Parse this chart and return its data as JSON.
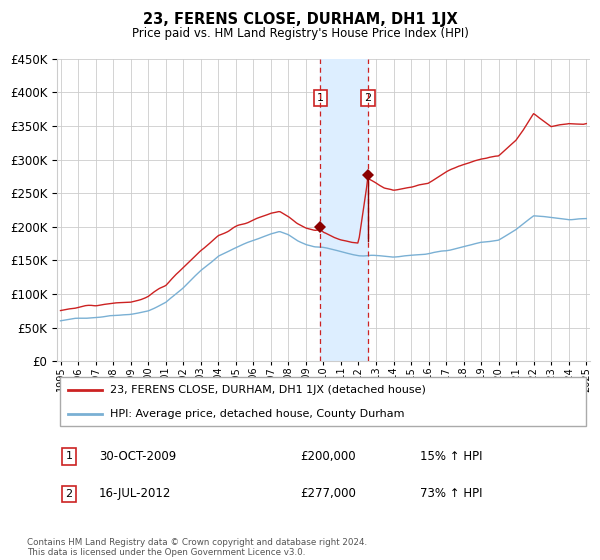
{
  "title": "23, FERENS CLOSE, DURHAM, DH1 1JX",
  "subtitle": "Price paid vs. HM Land Registry's House Price Index (HPI)",
  "legend_line1": "23, FERENS CLOSE, DURHAM, DH1 1JX (detached house)",
  "legend_line2": "HPI: Average price, detached house, County Durham",
  "transaction1_label": "1",
  "transaction1_date": "30-OCT-2009",
  "transaction1_price": "£200,000",
  "transaction1_hpi": "15% ↑ HPI",
  "transaction2_label": "2",
  "transaction2_date": "16-JUL-2012",
  "transaction2_price": "£277,000",
  "transaction2_hpi": "73% ↑ HPI",
  "footer": "Contains HM Land Registry data © Crown copyright and database right 2024.\nThis data is licensed under the Open Government Licence v3.0.",
  "ylim": [
    0,
    450000
  ],
  "yticks": [
    0,
    50000,
    100000,
    150000,
    200000,
    250000,
    300000,
    350000,
    400000,
    450000
  ],
  "hpi_color": "#7ab0d4",
  "price_color": "#cc2222",
  "marker_color": "#8b0000",
  "vline_color": "#cc2222",
  "highlight_color": "#ddeeff",
  "background_color": "#ffffff",
  "grid_color": "#cccccc",
  "year_start": 1995,
  "year_end": 2025,
  "transaction1_year": 2009.83,
  "transaction2_year": 2012.54,
  "transaction1_value": 200000,
  "transaction2_value": 277000,
  "hpi_waypoints": {
    "1995.0": 60000,
    "1996.0": 63000,
    "1997.0": 66000,
    "1998.0": 70000,
    "1999.0": 73000,
    "2000.0": 78000,
    "2001.0": 90000,
    "2002.0": 112000,
    "2003.0": 138000,
    "2004.0": 160000,
    "2005.0": 172000,
    "2006.0": 183000,
    "2007.0": 193000,
    "2007.5": 197000,
    "2008.0": 192000,
    "2008.5": 183000,
    "2009.0": 176000,
    "2009.5": 173000,
    "2009.83": 172000,
    "2010.0": 171000,
    "2010.5": 168000,
    "2011.0": 165000,
    "2011.5": 162000,
    "2012.0": 159000,
    "2012.54": 158000,
    "2013.0": 157000,
    "2013.5": 156000,
    "2014.0": 155000,
    "2015.0": 158000,
    "2016.0": 160000,
    "2017.0": 165000,
    "2018.0": 172000,
    "2019.0": 178000,
    "2020.0": 181000,
    "2021.0": 196000,
    "2022.0": 215000,
    "2023.0": 212000,
    "2024.0": 210000,
    "2025.0": 212000
  },
  "price_waypoints": {
    "1995.0": 75000,
    "1996.0": 78000,
    "1997.0": 80000,
    "1998.0": 83000,
    "1999.0": 85000,
    "2000.0": 92000,
    "2001.0": 107000,
    "2002.0": 135000,
    "2003.0": 162000,
    "2004.0": 185000,
    "2005.0": 198000,
    "2006.0": 208000,
    "2007.0": 218000,
    "2007.5": 222000,
    "2008.0": 215000,
    "2008.5": 205000,
    "2009.0": 200000,
    "2009.5": 198000,
    "2009.83": 200000,
    "2010.0": 196000,
    "2010.5": 190000,
    "2011.0": 185000,
    "2011.5": 182000,
    "2012.0": 179000,
    "2012.54": 277000,
    "2013.0": 270000,
    "2013.5": 262000,
    "2014.0": 258000,
    "2015.0": 263000,
    "2016.0": 268000,
    "2017.0": 282000,
    "2018.0": 293000,
    "2019.0": 304000,
    "2020.0": 307000,
    "2021.0": 332000,
    "2022.0": 372000,
    "2023.0": 352000,
    "2024.0": 358000,
    "2025.0": 356000
  }
}
